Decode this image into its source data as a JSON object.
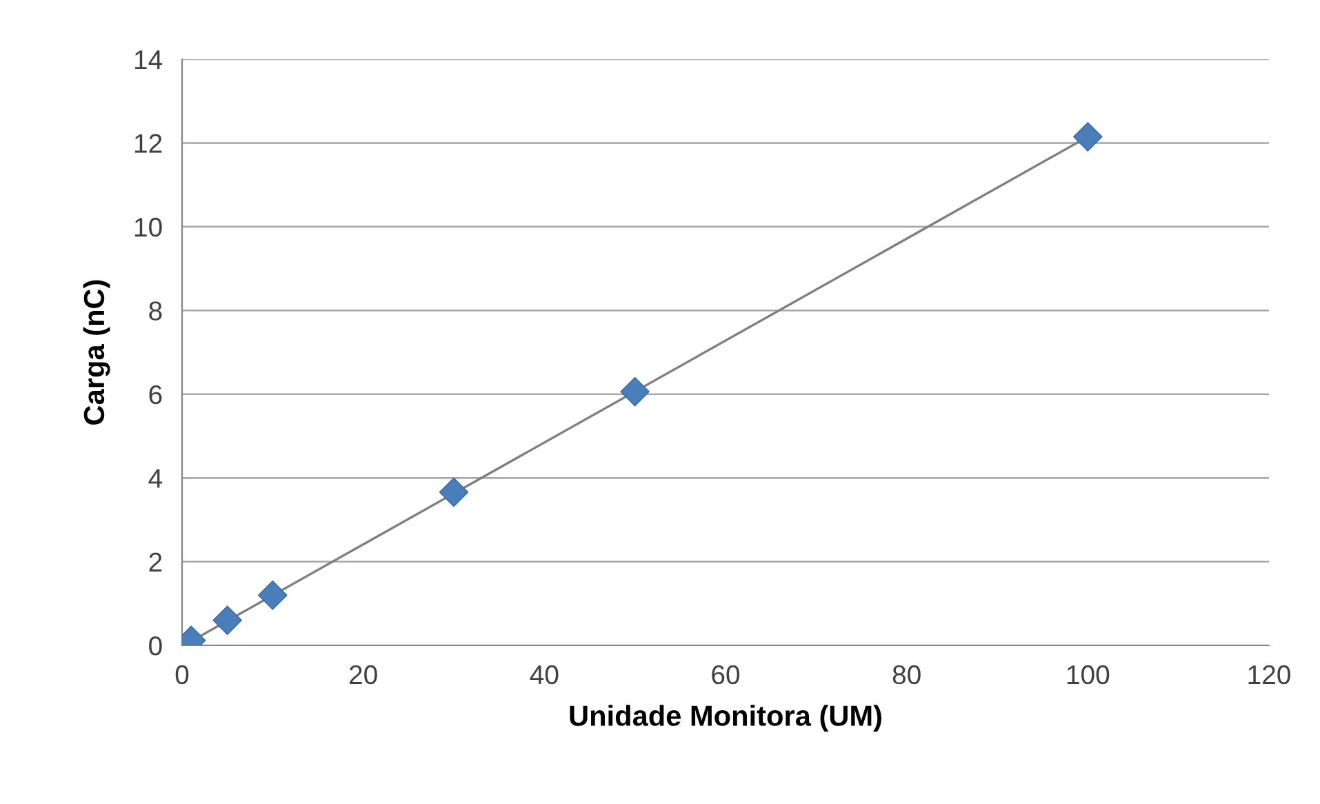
{
  "chart_data": {
    "type": "scatter",
    "xlabel": "Unidade Monitora (UM)",
    "ylabel": "Carga (nC)",
    "x": [
      1,
      5,
      10,
      30,
      50,
      100
    ],
    "series": [
      {
        "color": "#4a7ebb",
        "marker": "diamond",
        "values": [
          0.12,
          0.6,
          1.2,
          3.66,
          6.06,
          12.15
        ]
      },
      {
        "type": "line",
        "color": "#7f7f7f",
        "marker": "none",
        "line_style": "solid",
        "x": [
          1,
          100
        ],
        "values": [
          0.1,
          12.15
        ]
      }
    ],
    "xlim": [
      0,
      120
    ],
    "xticks": [
      0,
      20,
      40,
      60,
      80,
      100,
      120
    ],
    "ylim": [
      0,
      14
    ],
    "yticks": [
      0,
      2,
      4,
      6,
      8,
      10,
      12,
      14
    ],
    "grid": "y",
    "legend": false
  }
}
